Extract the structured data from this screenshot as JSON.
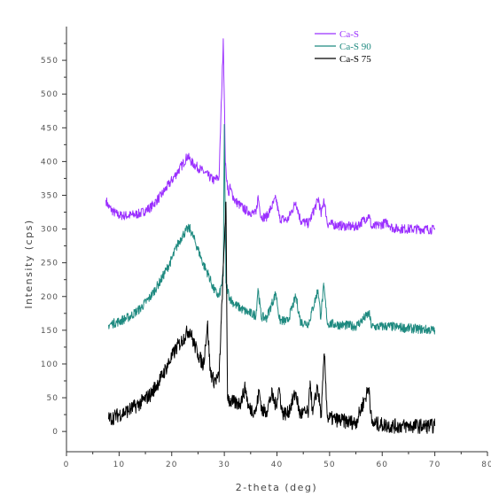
{
  "chart_data": {
    "type": "line",
    "title": "",
    "xlabel": "2-theta (deg)",
    "ylabel": "Intensity (cps)",
    "xlim": [
      0,
      80
    ],
    "ylim": [
      -30,
      600
    ],
    "xticks": [
      0,
      10,
      20,
      30,
      40,
      50,
      60,
      70,
      80
    ],
    "yticks": [
      0,
      50,
      100,
      150,
      200,
      250,
      300,
      350,
      400,
      450,
      500,
      550
    ],
    "grid": false,
    "legend_position": "top-right",
    "series": [
      {
        "name": "Ca-S",
        "color": "#9b30ff",
        "points": [
          [
            7.5,
            343
          ],
          [
            8,
            333
          ],
          [
            9,
            325
          ],
          [
            10,
            320
          ],
          [
            12,
            320
          ],
          [
            14,
            323
          ],
          [
            16,
            332
          ],
          [
            18,
            350
          ],
          [
            20,
            372
          ],
          [
            22,
            395
          ],
          [
            23,
            408
          ],
          [
            24,
            397
          ],
          [
            26,
            385
          ],
          [
            28,
            372
          ],
          [
            29,
            377
          ],
          [
            29.8,
            582
          ],
          [
            30.2,
            395
          ],
          [
            30.8,
            350
          ],
          [
            31,
            362
          ],
          [
            32,
            342
          ],
          [
            34,
            328
          ],
          [
            36,
            322
          ],
          [
            36.4,
            348
          ],
          [
            37,
            318
          ],
          [
            38,
            318
          ],
          [
            39.8,
            345
          ],
          [
            40.5,
            316
          ],
          [
            42,
            313
          ],
          [
            43.6,
            340
          ],
          [
            44.5,
            312
          ],
          [
            46,
            308
          ],
          [
            47.9,
            345
          ],
          [
            48.4,
            320
          ],
          [
            48.9,
            345
          ],
          [
            49.6,
            308
          ],
          [
            52,
            305
          ],
          [
            55,
            303
          ],
          [
            57.5,
            320
          ],
          [
            58,
            302
          ],
          [
            61,
            310
          ],
          [
            62,
            301
          ],
          [
            65,
            300
          ],
          [
            68,
            300
          ],
          [
            70,
            299
          ]
        ]
      },
      {
        "name": "Ca-S 90",
        "color": "#1f8a80",
        "points": [
          [
            8,
            158
          ],
          [
            10,
            163
          ],
          [
            12,
            170
          ],
          [
            14,
            182
          ],
          [
            16,
            200
          ],
          [
            18,
            225
          ],
          [
            20,
            255
          ],
          [
            21,
            275
          ],
          [
            22,
            290
          ],
          [
            23,
            300
          ],
          [
            23.5,
            300
          ],
          [
            24,
            290
          ],
          [
            25,
            270
          ],
          [
            26,
            248
          ],
          [
            27,
            232
          ],
          [
            28,
            210
          ],
          [
            29,
            200
          ],
          [
            29.8,
            230
          ],
          [
            30,
            455
          ],
          [
            30.3,
            220
          ],
          [
            31,
            198
          ],
          [
            32,
            188
          ],
          [
            34,
            178
          ],
          [
            36,
            172
          ],
          [
            36.4,
            212
          ],
          [
            37,
            170
          ],
          [
            38,
            168
          ],
          [
            39.8,
            205
          ],
          [
            40.5,
            165
          ],
          [
            42,
            163
          ],
          [
            43.6,
            200
          ],
          [
            44.5,
            162
          ],
          [
            46,
            160
          ],
          [
            47.8,
            210
          ],
          [
            48.3,
            170
          ],
          [
            48.9,
            215
          ],
          [
            49.6,
            160
          ],
          [
            52,
            158
          ],
          [
            55,
            156
          ],
          [
            57.5,
            175
          ],
          [
            58,
            155
          ],
          [
            61,
            156
          ],
          [
            65,
            153
          ],
          [
            70,
            150
          ]
        ]
      },
      {
        "name": "Ca-S 75",
        "color": "#000000",
        "points": [
          [
            8,
            18
          ],
          [
            10,
            25
          ],
          [
            12,
            32
          ],
          [
            14,
            42
          ],
          [
            16,
            55
          ],
          [
            18,
            80
          ],
          [
            20,
            110
          ],
          [
            21,
            125
          ],
          [
            22,
            135
          ],
          [
            23,
            148
          ],
          [
            23.5,
            150
          ],
          [
            24,
            135
          ],
          [
            25,
            115
          ],
          [
            26,
            98
          ],
          [
            26.8,
            160
          ],
          [
            27.3,
            90
          ],
          [
            28,
            75
          ],
          [
            29,
            80
          ],
          [
            30.3,
            340
          ],
          [
            30.6,
            55
          ],
          [
            31,
            45
          ],
          [
            32,
            42
          ],
          [
            33,
            42
          ],
          [
            34,
            65
          ],
          [
            34.6,
            35
          ],
          [
            36,
            30
          ],
          [
            36.6,
            60
          ],
          [
            37.2,
            30
          ],
          [
            38,
            30
          ],
          [
            39,
            55
          ],
          [
            39.8,
            38
          ],
          [
            40.4,
            65
          ],
          [
            41,
            28
          ],
          [
            42,
            26
          ],
          [
            43.6,
            58
          ],
          [
            44.3,
            26
          ],
          [
            46,
            28
          ],
          [
            46.3,
            75
          ],
          [
            46.8,
            25
          ],
          [
            47.7,
            68
          ],
          [
            48.4,
            22
          ],
          [
            49,
            115
          ],
          [
            49.6,
            20
          ],
          [
            51,
            18
          ],
          [
            53,
            15
          ],
          [
            55,
            13
          ],
          [
            57.5,
            65
          ],
          [
            58,
            12
          ],
          [
            60,
            10
          ],
          [
            62,
            8
          ],
          [
            65,
            8
          ],
          [
            68,
            8
          ],
          [
            70,
            8
          ]
        ]
      }
    ]
  }
}
